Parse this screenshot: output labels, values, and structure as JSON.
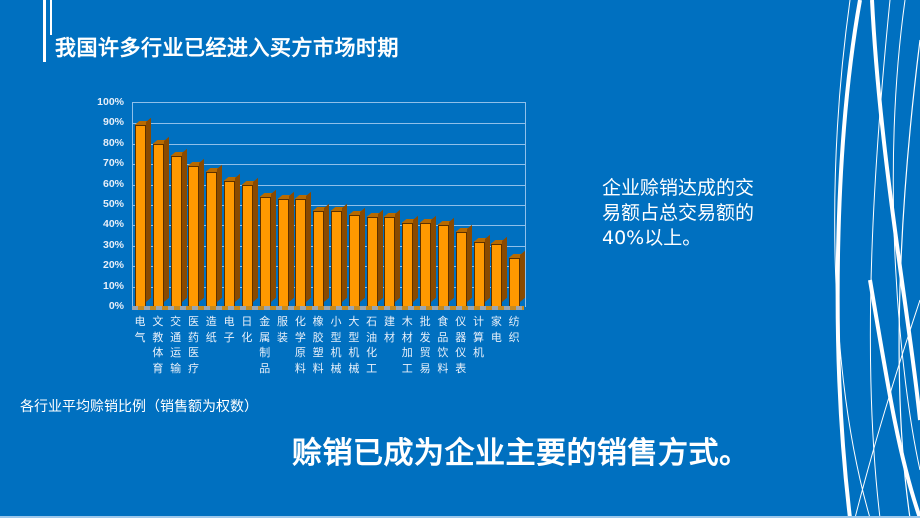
{
  "slide": {
    "title": "我国许多行业已经进入买方市场时期",
    "caption": "各行业平均赊销比例（销售额为权数）",
    "side_note": "企业赊销达成的交易额占总交易额的40%以上。",
    "conclusion": "赊销已成为企业主要的销售方式。",
    "background_color": "#0070C0",
    "bar_color": "#FF9900"
  },
  "chart_data": {
    "type": "bar",
    "title": "",
    "xlabel": "",
    "ylabel": "",
    "ylim": [
      0,
      100
    ],
    "y_ticks": [
      "100%",
      "90%",
      "80%",
      "70%",
      "60%",
      "50%",
      "40%",
      "30%",
      "20%",
      "10%",
      "0%"
    ],
    "grid": true,
    "legend": null,
    "categories": [
      "电气",
      "文教体育",
      "交通运输",
      "医药医疗",
      "造纸",
      "电子",
      "日化",
      "金属制品",
      "服装",
      "化学原料",
      "橡胶塑料",
      "小型机械",
      "大型机械",
      "石油化工",
      "建材",
      "木材加工",
      "批发贸易",
      "食品饮料",
      "仪器仪表",
      "计算机",
      "家电",
      "纺织"
    ],
    "values": [
      89,
      80,
      74,
      69,
      66,
      62,
      60,
      54,
      53,
      53,
      47,
      47,
      45,
      44,
      44,
      41,
      41,
      40,
      37,
      32,
      31,
      24
    ],
    "unit": "%"
  }
}
